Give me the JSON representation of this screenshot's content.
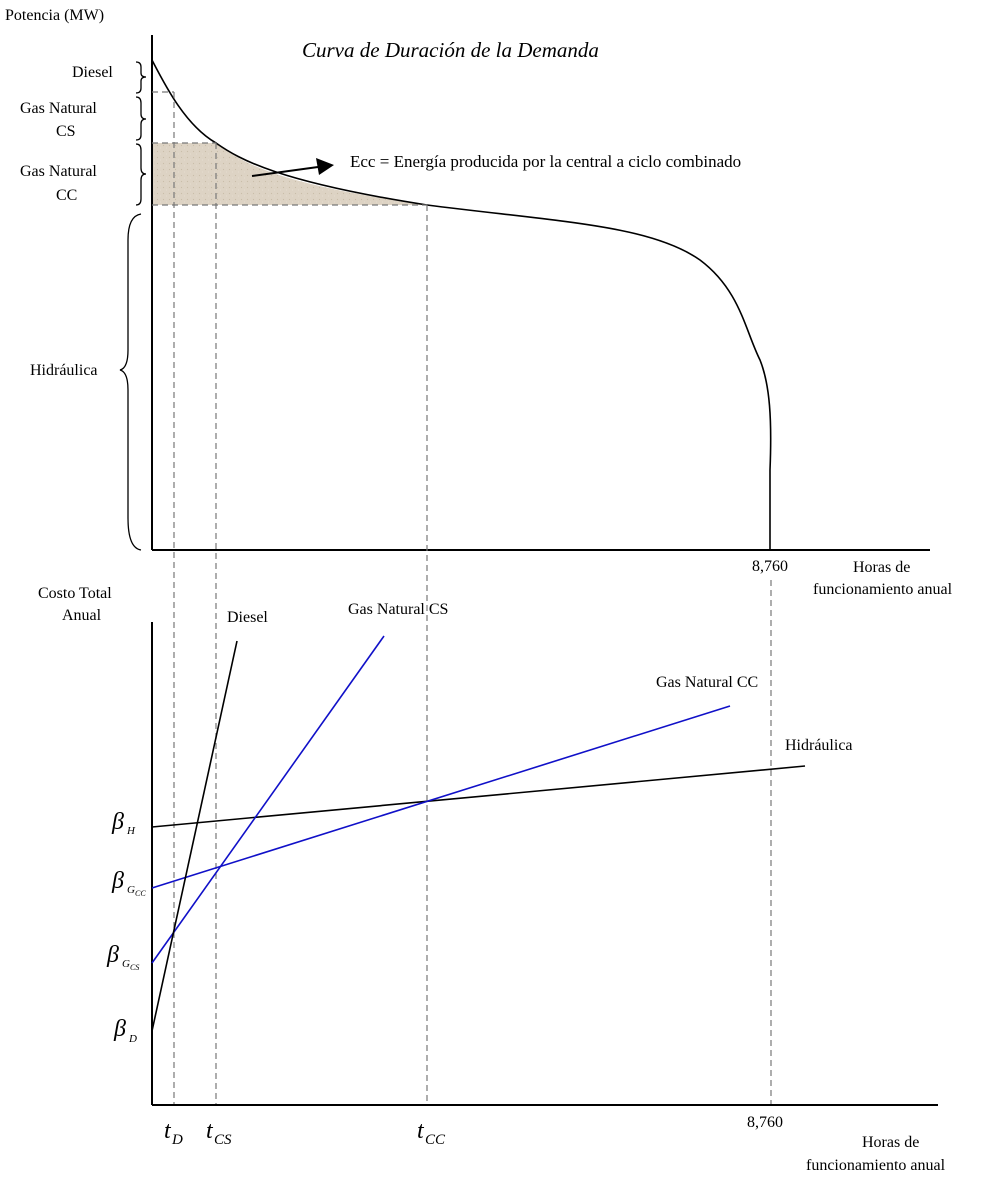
{
  "top": {
    "y_axis_label": "Potencia (MW)",
    "title": "Curva de Duración de la Demanda",
    "x_axis_label_line1": "Horas de",
    "x_axis_label_line2": "funcionamiento anual",
    "x_tick": "8,760",
    "annotation": "Ecc = Energía producida por la central a ciclo combinado",
    "bands": {
      "diesel": "Diesel",
      "gncs_line1": "Gas Natural",
      "gncs_line2": "CS",
      "gncc_line1": "Gas Natural",
      "gncc_line2": "CC",
      "hidraulica": "Hidráulica"
    }
  },
  "bottom": {
    "y_axis_label_line1": "Costo Total",
    "y_axis_label_line2": "Anual",
    "x_axis_label_line1": "Horas de",
    "x_axis_label_line2": "funcionamiento anual",
    "x_tick": "8,760",
    "lines": {
      "diesel": "Diesel",
      "gncs": "Gas Natural CS",
      "gncc": "Gas Natural CC",
      "hidraulica": "Hidráulica"
    },
    "betas": {
      "symbol": "β",
      "h_sub": "H",
      "gcc_sub": "G",
      "gcc_subsub": "CC",
      "gcs_sub": "G",
      "gcs_subsub": "CS",
      "d_sub": "D"
    },
    "times": {
      "symbol": "t",
      "d_sub": "D",
      "cs_sub": "CS",
      "cc_sub": "CC"
    }
  },
  "colors": {
    "blue_lines": "#1010c8",
    "shaded_area": "#d8cfc0"
  }
}
